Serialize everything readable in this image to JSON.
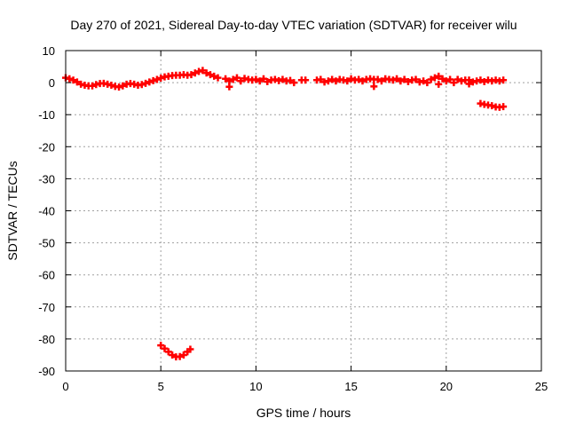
{
  "chart_data": {
    "type": "scatter",
    "title": "Day 270 of 2021, Sidereal Day-to-day VTEC variation (SDTVAR) for receiver wilu",
    "xlabel": "GPS time / hours",
    "ylabel": "SDTVAR / TECUs",
    "xlim": [
      0,
      25
    ],
    "ylim": [
      -90,
      10
    ],
    "xticks": [
      0,
      5,
      10,
      15,
      20,
      25
    ],
    "yticks": [
      10,
      0,
      -10,
      -20,
      -30,
      -40,
      -50,
      -60,
      -70,
      -80,
      -90
    ],
    "xtick_labels": [
      "0",
      "5",
      "10",
      "15",
      "20",
      "25"
    ],
    "ytick_labels": [
      "10",
      "0",
      "-10",
      "-20",
      "-30",
      "-40",
      "-50",
      "-60",
      "-70",
      "-80",
      "-90"
    ],
    "grid": true,
    "marker": "plus",
    "series": [
      {
        "color": "#ff0000",
        "points": [
          [
            0.0,
            1.5
          ],
          [
            0.2,
            1.2
          ],
          [
            0.4,
            0.8
          ],
          [
            0.6,
            0.2
          ],
          [
            0.8,
            -0.5
          ],
          [
            1.0,
            -0.8
          ],
          [
            1.2,
            -1.0
          ],
          [
            1.4,
            -1.0
          ],
          [
            1.6,
            -0.6
          ],
          [
            1.8,
            -0.3
          ],
          [
            2.0,
            -0.2
          ],
          [
            2.2,
            -0.5
          ],
          [
            2.4,
            -0.8
          ],
          [
            2.6,
            -1.2
          ],
          [
            2.8,
            -1.4
          ],
          [
            3.0,
            -1.0
          ],
          [
            3.2,
            -0.5
          ],
          [
            3.4,
            -0.3
          ],
          [
            3.6,
            -0.5
          ],
          [
            3.8,
            -0.8
          ],
          [
            4.0,
            -0.6
          ],
          [
            4.2,
            -0.2
          ],
          [
            4.4,
            0.2
          ],
          [
            4.6,
            0.6
          ],
          [
            4.8,
            1.0
          ],
          [
            5.0,
            1.4
          ],
          [
            5.2,
            1.8
          ],
          [
            5.4,
            2.0
          ],
          [
            5.6,
            2.2
          ],
          [
            5.8,
            2.3
          ],
          [
            6.0,
            2.3
          ],
          [
            6.2,
            2.5
          ],
          [
            6.4,
            2.3
          ],
          [
            6.6,
            2.5
          ],
          [
            6.8,
            3.0
          ],
          [
            7.0,
            3.5
          ],
          [
            7.2,
            3.8
          ],
          [
            7.4,
            3.0
          ],
          [
            7.6,
            2.5
          ],
          [
            7.8,
            2.0
          ],
          [
            8.0,
            1.5
          ],
          [
            8.4,
            1.2
          ],
          [
            8.6,
            0.5
          ],
          [
            8.8,
            1.0
          ],
          [
            9.0,
            1.5
          ],
          [
            9.2,
            0.5
          ],
          [
            9.4,
            1.3
          ],
          [
            9.6,
            1.0
          ],
          [
            9.8,
            0.8
          ],
          [
            10.0,
            1.0
          ],
          [
            10.2,
            0.5
          ],
          [
            10.4,
            1.2
          ],
          [
            10.6,
            0.3
          ],
          [
            10.8,
            0.8
          ],
          [
            11.0,
            1.0
          ],
          [
            11.2,
            0.6
          ],
          [
            11.4,
            1.0
          ],
          [
            11.6,
            0.5
          ],
          [
            11.8,
            0.7
          ],
          [
            12.0,
            0.0
          ],
          [
            12.4,
            0.8
          ],
          [
            12.6,
            0.8
          ],
          [
            13.2,
            0.8
          ],
          [
            13.4,
            1.0
          ],
          [
            13.6,
            0.2
          ],
          [
            13.8,
            0.5
          ],
          [
            14.0,
            1.0
          ],
          [
            14.2,
            0.5
          ],
          [
            14.4,
            1.0
          ],
          [
            14.6,
            0.8
          ],
          [
            14.8,
            0.5
          ],
          [
            15.0,
            1.2
          ],
          [
            15.2,
            0.8
          ],
          [
            15.4,
            1.0
          ],
          [
            15.6,
            0.5
          ],
          [
            15.8,
            1.0
          ],
          [
            16.0,
            1.2
          ],
          [
            16.2,
            1.0
          ],
          [
            16.4,
            1.0
          ],
          [
            16.6,
            0.5
          ],
          [
            16.8,
            1.2
          ],
          [
            17.0,
            1.0
          ],
          [
            17.2,
            0.8
          ],
          [
            17.4,
            1.2
          ],
          [
            17.6,
            0.5
          ],
          [
            17.8,
            1.0
          ],
          [
            18.0,
            0.3
          ],
          [
            18.2,
            0.8
          ],
          [
            18.4,
            1.0
          ],
          [
            18.6,
            0.2
          ],
          [
            18.8,
            0.5
          ],
          [
            19.0,
            0.0
          ],
          [
            19.2,
            1.0
          ],
          [
            19.4,
            1.5
          ],
          [
            19.6,
            2.0
          ],
          [
            19.8,
            1.2
          ],
          [
            20.0,
            0.5
          ],
          [
            20.2,
            1.0
          ],
          [
            20.4,
            0.0
          ],
          [
            20.6,
            1.0
          ],
          [
            20.8,
            0.5
          ],
          [
            21.0,
            0.8
          ],
          [
            21.2,
            0.8
          ],
          [
            21.4,
            0.2
          ],
          [
            21.6,
            0.5
          ],
          [
            21.8,
            0.8
          ],
          [
            22.0,
            0.3
          ],
          [
            22.2,
            0.8
          ],
          [
            22.4,
            0.5
          ],
          [
            22.6,
            0.8
          ],
          [
            22.8,
            0.5
          ],
          [
            23.0,
            0.8
          ],
          [
            16.2,
            -1.2
          ],
          [
            8.6,
            -1.3
          ],
          [
            19.6,
            -0.5
          ],
          [
            21.2,
            -0.4
          ],
          [
            21.8,
            -6.5
          ],
          [
            22.0,
            -6.8
          ],
          [
            22.2,
            -7.0
          ],
          [
            22.4,
            -7.2
          ],
          [
            22.6,
            -7.6
          ],
          [
            22.8,
            -7.7
          ],
          [
            23.0,
            -7.5
          ],
          [
            5.0,
            -82.0
          ],
          [
            5.2,
            -83.0
          ],
          [
            5.4,
            -84.0
          ],
          [
            5.6,
            -85.0
          ],
          [
            5.8,
            -85.6
          ],
          [
            6.0,
            -85.5
          ],
          [
            6.2,
            -85.0
          ],
          [
            6.4,
            -84.0
          ],
          [
            6.55,
            -83.2
          ]
        ]
      }
    ]
  }
}
